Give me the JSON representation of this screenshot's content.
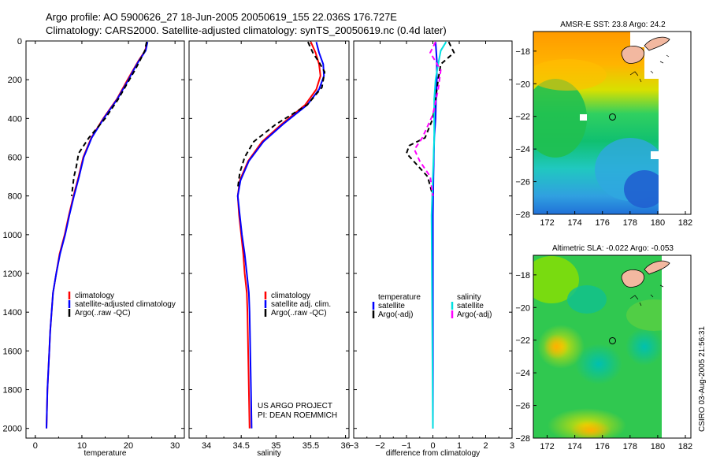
{
  "header": {
    "line1": "Argo profile: AO 5900626_27 18-Jun-2005 20050619_155 22.036S 176.727E",
    "line2": "Climatology: CARS2000. Satellite-adjusted climatology: synTS_20050619.nc (0.4d later)"
  },
  "credits": {
    "line1": "US ARGO PROJECT",
    "line2": "PI: DEAN ROEMMICH"
  },
  "side_stamp": "CSIRO 03-Aug-2005 21:56:31",
  "colors": {
    "climatology": "#ff0000",
    "satellite": "#0000ff",
    "argo": "#000000",
    "salinity_sat": "#00e0e0",
    "salinity_argo": "#ff00ff"
  },
  "chart_data": [
    {
      "type": "line",
      "id": "temperature",
      "xlabel": "temperature",
      "ylabel": "",
      "xlim": [
        -2,
        32
      ],
      "ylim": [
        2050,
        0
      ],
      "xticks": [
        0,
        10,
        20,
        30
      ],
      "yticks": [
        0,
        200,
        400,
        600,
        800,
        1000,
        1200,
        1400,
        1600,
        1800,
        2000
      ],
      "legend": [
        "climatology",
        "satellite-adjusted climatology",
        "Argo(..raw -QC)"
      ],
      "series": [
        {
          "name": "climatology",
          "color": "#ff0000",
          "dash": "",
          "points": [
            [
              24.0,
              5
            ],
            [
              23.6,
              50
            ],
            [
              22.2,
              100
            ],
            [
              21.0,
              150
            ],
            [
              19.8,
              200
            ],
            [
              17.5,
              300
            ],
            [
              14.6,
              400
            ],
            [
              12.0,
              500
            ],
            [
              10.3,
              600
            ],
            [
              9.3,
              700
            ],
            [
              8.2,
              800
            ],
            [
              7.2,
              900
            ],
            [
              6.3,
              1000
            ],
            [
              5.2,
              1100
            ],
            [
              4.5,
              1200
            ],
            [
              3.8,
              1300
            ],
            [
              3.5,
              1400
            ],
            [
              3.2,
              1500
            ],
            [
              3.0,
              1600
            ],
            [
              2.8,
              1700
            ],
            [
              2.6,
              1800
            ],
            [
              2.5,
              1900
            ],
            [
              2.4,
              2000
            ]
          ]
        },
        {
          "name": "satellite-adjusted climatology",
          "color": "#0000ff",
          "dash": "",
          "points": [
            [
              24.1,
              5
            ],
            [
              23.7,
              50
            ],
            [
              22.3,
              100
            ],
            [
              21.1,
              150
            ],
            [
              20.0,
              200
            ],
            [
              17.6,
              300
            ],
            [
              14.7,
              400
            ],
            [
              12.1,
              500
            ],
            [
              10.4,
              600
            ],
            [
              9.4,
              700
            ],
            [
              8.3,
              800
            ],
            [
              7.3,
              900
            ],
            [
              6.4,
              1000
            ],
            [
              5.3,
              1100
            ],
            [
              4.5,
              1200
            ],
            [
              3.8,
              1300
            ],
            [
              3.5,
              1400
            ],
            [
              3.2,
              1500
            ],
            [
              3.0,
              1600
            ],
            [
              2.8,
              1700
            ],
            [
              2.6,
              1800
            ],
            [
              2.5,
              1900
            ],
            [
              2.4,
              2000
            ]
          ]
        },
        {
          "name": "Argo(..raw -QC)",
          "color": "#000000",
          "dash": "6,4",
          "points": [
            [
              23.9,
              5
            ],
            [
              23.5,
              50
            ],
            [
              22.5,
              100
            ],
            [
              21.4,
              150
            ],
            [
              20.2,
              200
            ],
            [
              17.8,
              300
            ],
            [
              15.0,
              400
            ],
            [
              11.5,
              500
            ],
            [
              9.3,
              580
            ],
            [
              8.8,
              650
            ],
            [
              8.3,
              700
            ],
            [
              7.8,
              800
            ]
          ]
        }
      ]
    },
    {
      "type": "line",
      "id": "salinity",
      "xlabel": "salinity",
      "ylabel": "",
      "xlim": [
        33.75,
        36.05
      ],
      "ylim": [
        2050,
        0
      ],
      "xticks": [
        34,
        34.5,
        35,
        35.5,
        36
      ],
      "legend": [
        "climatology",
        "satellite adj. clim.",
        "Argo(..raw -QC)"
      ],
      "series": [
        {
          "name": "climatology",
          "color": "#ff0000",
          "dash": "",
          "points": [
            [
              35.5,
              5
            ],
            [
              35.57,
              60
            ],
            [
              35.62,
              120
            ],
            [
              35.64,
              180
            ],
            [
              35.58,
              250
            ],
            [
              35.42,
              330
            ],
            [
              35.08,
              430
            ],
            [
              34.8,
              520
            ],
            [
              34.6,
              620
            ],
            [
              34.48,
              720
            ],
            [
              34.45,
              800
            ],
            [
              34.47,
              900
            ],
            [
              34.5,
              1000
            ],
            [
              34.53,
              1100
            ],
            [
              34.55,
              1200
            ],
            [
              34.58,
              1300
            ],
            [
              34.59,
              1400
            ],
            [
              34.6,
              1600
            ],
            [
              34.61,
              1800
            ],
            [
              34.62,
              2000
            ]
          ]
        },
        {
          "name": "satellite adj. clim.",
          "color": "#0000ff",
          "dash": "",
          "points": [
            [
              35.58,
              5
            ],
            [
              35.62,
              60
            ],
            [
              35.68,
              120
            ],
            [
              35.69,
              180
            ],
            [
              35.62,
              250
            ],
            [
              35.45,
              330
            ],
            [
              35.1,
              430
            ],
            [
              34.82,
              520
            ],
            [
              34.61,
              620
            ],
            [
              34.49,
              720
            ],
            [
              34.45,
              800
            ],
            [
              34.48,
              900
            ],
            [
              34.51,
              1000
            ],
            [
              34.55,
              1100
            ],
            [
              34.58,
              1200
            ],
            [
              34.61,
              1300
            ],
            [
              34.62,
              1400
            ],
            [
              34.63,
              1600
            ],
            [
              34.64,
              1800
            ],
            [
              34.65,
              2000
            ]
          ]
        },
        {
          "name": "Argo(..raw -QC)",
          "color": "#000000",
          "dash": "6,4",
          "points": [
            [
              35.46,
              5
            ],
            [
              35.53,
              60
            ],
            [
              35.62,
              110
            ],
            [
              35.7,
              160
            ],
            [
              35.66,
              240
            ],
            [
              35.45,
              330
            ],
            [
              35.0,
              430
            ],
            [
              34.68,
              520
            ],
            [
              34.55,
              600
            ],
            [
              34.48,
              680
            ],
            [
              34.45,
              760
            ]
          ]
        }
      ]
    },
    {
      "type": "line",
      "id": "difference",
      "xlabel": "difference from climatology",
      "ylabel": "",
      "xlim": [
        -3,
        3
      ],
      "ylim": [
        2050,
        0
      ],
      "xticks": [
        -3,
        -2,
        -1,
        0,
        1,
        2,
        3
      ],
      "legend_left_title": "temperature",
      "legend_left": [
        "satellite",
        "Argo(-adj)"
      ],
      "legend_right_title": "salinity",
      "legend_right": [
        "satellite",
        "Argo(-adj)"
      ],
      "series": [
        {
          "name": "temperature satellite",
          "color": "#0000ff",
          "dash": "",
          "points": [
            [
              0.1,
              5
            ],
            [
              0.15,
              100
            ],
            [
              0.15,
              200
            ],
            [
              0.12,
              300
            ],
            [
              0.1,
              400
            ],
            [
              0.05,
              500
            ],
            [
              0.02,
              700
            ],
            [
              0.0,
              900
            ],
            [
              0.0,
              2000
            ]
          ]
        },
        {
          "name": "temperature Argo(-adj)",
          "color": "#000000",
          "dash": "6,4",
          "points": [
            [
              0.6,
              5
            ],
            [
              0.8,
              60
            ],
            [
              0.3,
              120
            ],
            [
              0.2,
              200
            ],
            [
              0.1,
              300
            ],
            [
              0.0,
              400
            ],
            [
              -0.3,
              500
            ],
            [
              -0.9,
              540
            ],
            [
              -1.0,
              580
            ],
            [
              -0.6,
              640
            ],
            [
              -0.2,
              700
            ],
            [
              0.0,
              800
            ]
          ]
        },
        {
          "name": "salinity satellite",
          "color": "#00e0e0",
          "dash": "",
          "points": [
            [
              0.5,
              5
            ],
            [
              0.3,
              50
            ],
            [
              0.2,
              120
            ],
            [
              0.1,
              200
            ],
            [
              0.05,
              300
            ],
            [
              0.05,
              500
            ],
            [
              0.0,
              700
            ],
            [
              -0.05,
              900
            ],
            [
              0.0,
              2000
            ]
          ]
        },
        {
          "name": "salinity Argo(-adj)",
          "color": "#ff00ff",
          "dash": "6,4",
          "points": [
            [
              0.1,
              5
            ],
            [
              -0.1,
              60
            ],
            [
              0.3,
              150
            ],
            [
              0.2,
              250
            ],
            [
              0.0,
              380
            ],
            [
              -0.4,
              500
            ],
            [
              -0.7,
              560
            ],
            [
              -0.5,
              620
            ],
            [
              -0.1,
              700
            ],
            [
              0.0,
              800
            ]
          ]
        }
      ]
    },
    {
      "type": "heatmap",
      "id": "sst_map",
      "title": "AMSR-E SST: 23.8 Argo: 24.2",
      "xlim": [
        171,
        182.4
      ],
      "ylim": [
        -28,
        -16.8
      ],
      "xticks": [
        172,
        174,
        176,
        178,
        180,
        182
      ],
      "yticks": [
        -18,
        -20,
        -22,
        -24,
        -26,
        -28
      ],
      "marker": [
        176.727,
        -22.036
      ]
    },
    {
      "type": "heatmap",
      "id": "sla_map",
      "title": "Altimetric SLA: -0.022 Argo: -0.053",
      "xlim": [
        171,
        182.4
      ],
      "ylim": [
        -28,
        -16.8
      ],
      "xticks": [
        172,
        174,
        176,
        178,
        180,
        182
      ],
      "yticks": [
        -18,
        -20,
        -22,
        -24,
        -26,
        -28
      ],
      "marker": [
        176.727,
        -22.036
      ]
    }
  ]
}
